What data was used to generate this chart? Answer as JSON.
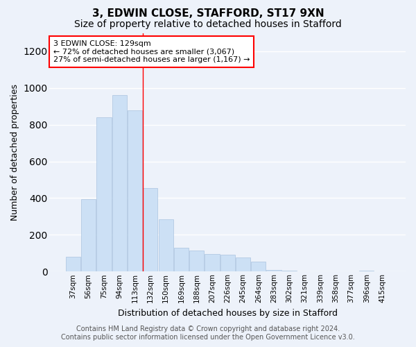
{
  "title1": "3, EDWIN CLOSE, STAFFORD, ST17 9XN",
  "title2": "Size of property relative to detached houses in Stafford",
  "xlabel": "Distribution of detached houses by size in Stafford",
  "ylabel": "Number of detached properties",
  "categories": [
    "37sqm",
    "56sqm",
    "75sqm",
    "94sqm",
    "113sqm",
    "132sqm",
    "150sqm",
    "169sqm",
    "188sqm",
    "207sqm",
    "226sqm",
    "245sqm",
    "264sqm",
    "283sqm",
    "302sqm",
    "321sqm",
    "339sqm",
    "358sqm",
    "377sqm",
    "396sqm",
    "415sqm"
  ],
  "values": [
    80,
    395,
    840,
    960,
    880,
    455,
    285,
    130,
    115,
    95,
    90,
    75,
    55,
    10,
    5,
    2,
    1,
    1,
    1,
    5,
    1
  ],
  "bar_color": "#cce0f5",
  "bar_edge_color": "#aac4e0",
  "vline_x_index": 4.5,
  "annotation_box_text": "3 EDWIN CLOSE: 129sqm\n← 72% of detached houses are smaller (3,067)\n27% of semi-detached houses are larger (1,167) →",
  "ylim": [
    0,
    1300
  ],
  "yticks": [
    0,
    200,
    400,
    600,
    800,
    1000,
    1200
  ],
  "footer_line1": "Contains HM Land Registry data © Crown copyright and database right 2024.",
  "footer_line2": "Contains public sector information licensed under the Open Government Licence v3.0.",
  "bg_color": "#edf2fa",
  "plot_bg_color": "#edf2fa",
  "grid_color": "#ffffff",
  "title_fontsize": 11,
  "subtitle_fontsize": 10,
  "axis_label_fontsize": 9,
  "tick_fontsize": 7.5,
  "footer_fontsize": 7,
  "annotation_fontsize": 8
}
